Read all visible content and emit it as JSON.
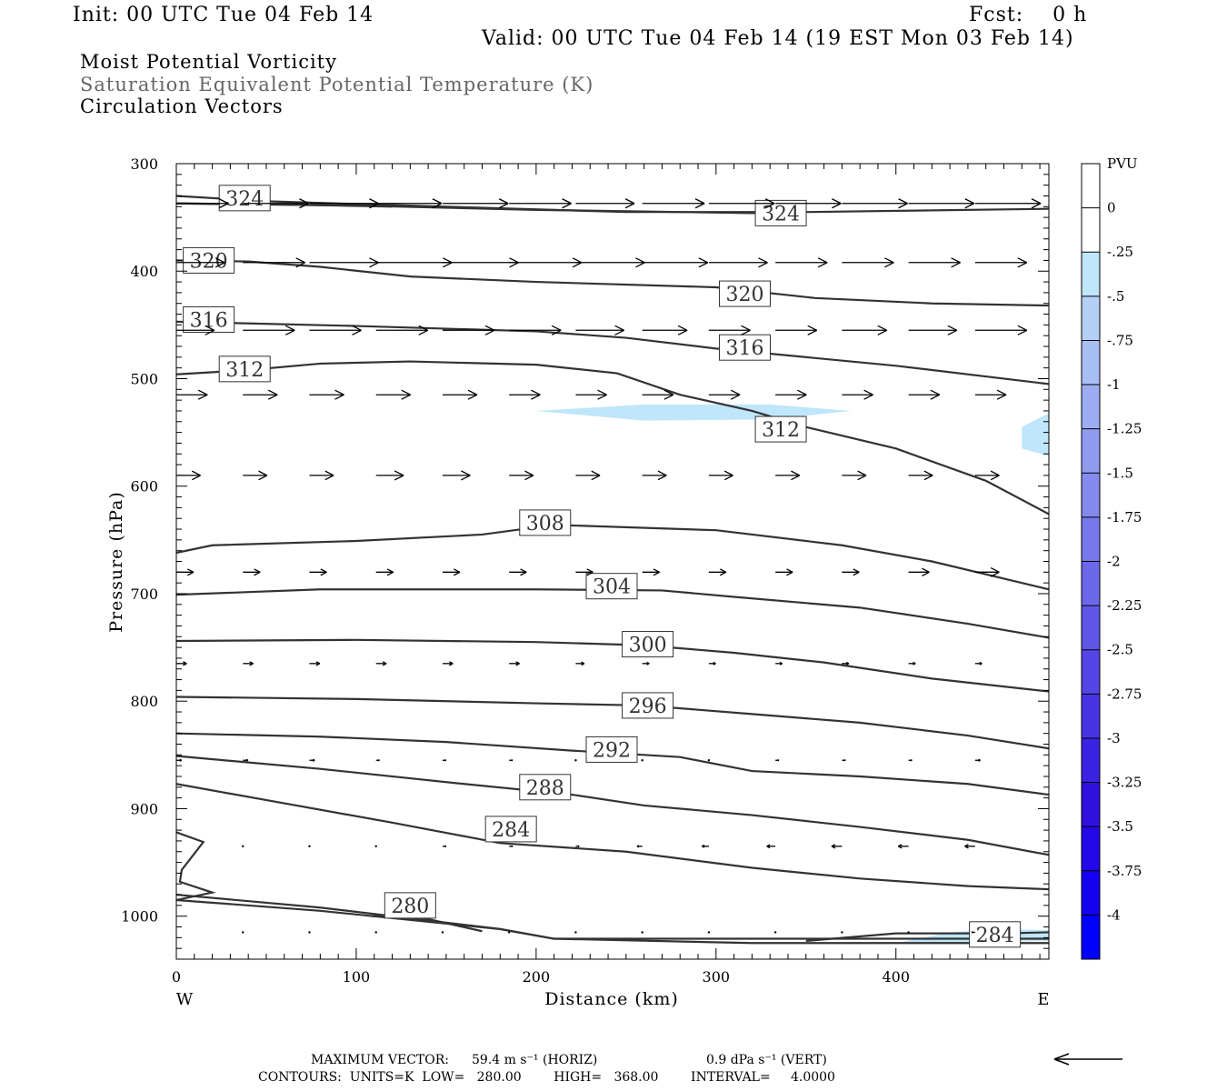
{
  "header": {
    "init": "Init: 00 UTC Tue 04 Feb 14",
    "fcst": "Fcst:    0 h",
    "valid": "Valid: 00 UTC Tue 04 Feb 14 (19 EST Mon 03 Feb 14)",
    "field1": "Moist Potential Vorticity",
    "field2": "Saturation Equivalent Potential Temperature (K)",
    "field3": "Circulation Vectors"
  },
  "footer": {
    "max_vector_label": "MAXIMUM VECTOR:",
    "max_vector_horiz": "59.4 m s⁻¹ (HORIZ)",
    "max_vector_vert": "0.9 dPa s⁻¹ (VERT)",
    "contours": "CONTOURS:  UNITS=K  LOW=   280.00        HIGH=   368.00        INTERVAL=     4.0000"
  },
  "colors": {
    "contour": "#333333",
    "pv_light": "#bfe6fa",
    "vector": "#000000"
  },
  "chart_data": {
    "type": "cross-section",
    "xlabel": "Distance (km)",
    "ylabel": "Pressure (hPa)",
    "xlim": [
      0,
      485
    ],
    "ylim": [
      1040,
      300
    ],
    "x_ticks": [
      0,
      100,
      200,
      300,
      400
    ],
    "y_ticks": [
      300,
      400,
      500,
      600,
      700,
      800,
      900,
      1000
    ],
    "x_end_labels": {
      "left": "W",
      "right": "E"
    },
    "colorbar": {
      "title": "PVU",
      "labels": [
        "0",
        "-.25",
        "-.5",
        "-.75",
        "-1",
        "-1.25",
        "-1.5",
        "-1.75",
        "-2",
        "-2.25",
        "-2.5",
        "-2.75",
        "-3",
        "-3.25",
        "-3.5",
        "-3.75",
        "-4"
      ],
      "colors": [
        "#ffffff",
        "#ffffff",
        "#bfe6fa",
        "#b4d0f6",
        "#a8bff4",
        "#9cadf2",
        "#909cf0",
        "#848aee",
        "#7879ec",
        "#6c68ea",
        "#6056e8",
        "#5445e6",
        "#4834e4",
        "#3c22e2",
        "#3011e0",
        "#2408e8",
        "#1400f0",
        "#0000ff"
      ]
    },
    "contours": [
      {
        "label": "324",
        "points": [
          [
            0,
            330
          ],
          [
            50,
            335
          ],
          [
            150,
            340
          ],
          [
            250,
            345
          ],
          [
            350,
            345
          ],
          [
            485,
            342
          ]
        ],
        "label_at": [
          38,
          332
        ]
      },
      {
        "label": "324",
        "points": [
          [
            0,
            337
          ],
          [
            100,
            339
          ],
          [
            200,
            343
          ],
          [
            320,
            346
          ]
        ],
        "label_at": null
      },
      {
        "label": "324",
        "points": [
          [
            0,
            337
          ],
          [
            60,
            338
          ],
          [
            120,
            340
          ]
        ],
        "label_at": null
      },
      {
        "label": "324",
        "points": [
          [
            320,
            346
          ],
          [
            330,
            346
          ]
        ],
        "label_at": [
          336,
          346
        ]
      },
      {
        "label": "320",
        "points": [
          [
            0,
            390
          ],
          [
            40,
            391
          ],
          [
            80,
            396
          ],
          [
            130,
            405
          ],
          [
            200,
            410
          ],
          [
            300,
            415
          ],
          [
            355,
            425
          ],
          [
            420,
            430
          ],
          [
            485,
            432
          ]
        ],
        "label_at": [
          18,
          390
        ]
      },
      {
        "label": "320",
        "points": [],
        "label_at": [
          316,
          421
        ]
      },
      {
        "label": "316",
        "points": [
          [
            0,
            447
          ],
          [
            100,
            451
          ],
          [
            200,
            456
          ],
          [
            250,
            462
          ],
          [
            300,
            472
          ],
          [
            400,
            488
          ],
          [
            485,
            505
          ]
        ],
        "label_at": [
          18,
          445
        ]
      },
      {
        "label": "316",
        "points": [],
        "label_at": [
          316,
          471
        ]
      },
      {
        "label": "312",
        "points": [
          [
            0,
            496
          ],
          [
            40,
            492
          ],
          [
            80,
            486
          ],
          [
            130,
            484
          ],
          [
            200,
            487
          ],
          [
            245,
            495
          ],
          [
            280,
            515
          ],
          [
            320,
            530
          ],
          [
            350,
            545
          ],
          [
            400,
            565
          ],
          [
            450,
            595
          ],
          [
            485,
            626
          ]
        ],
        "label_at": [
          38,
          491
        ]
      },
      {
        "label": "312",
        "points": [],
        "label_at": [
          336,
          547
        ]
      },
      {
        "label": "308",
        "points": [
          [
            0,
            662
          ],
          [
            20,
            655
          ],
          [
            100,
            651
          ],
          [
            170,
            645
          ],
          [
            210,
            636
          ],
          [
            300,
            641
          ],
          [
            370,
            655
          ],
          [
            420,
            670
          ],
          [
            485,
            696
          ]
        ],
        "label_at": [
          205,
          634
        ]
      },
      {
        "label": "304",
        "points": [
          [
            0,
            701
          ],
          [
            80,
            696
          ],
          [
            200,
            696
          ],
          [
            270,
            697
          ],
          [
            310,
            703
          ],
          [
            380,
            713
          ],
          [
            440,
            728
          ],
          [
            485,
            741
          ]
        ],
        "label_at": [
          242,
          693
        ]
      },
      {
        "label": "300",
        "points": [
          [
            0,
            744
          ],
          [
            100,
            743
          ],
          [
            200,
            745
          ],
          [
            260,
            748
          ],
          [
            310,
            755
          ],
          [
            360,
            764
          ],
          [
            420,
            779
          ],
          [
            485,
            791
          ]
        ],
        "label_at": [
          262,
          747
        ]
      },
      {
        "label": "296",
        "points": [
          [
            0,
            796
          ],
          [
            100,
            798
          ],
          [
            200,
            802
          ],
          [
            260,
            804
          ],
          [
            320,
            812
          ],
          [
            380,
            820
          ],
          [
            440,
            832
          ],
          [
            485,
            844
          ]
        ],
        "label_at": [
          262,
          804
        ]
      },
      {
        "label": "292",
        "points": [
          [
            0,
            830
          ],
          [
            80,
            833
          ],
          [
            150,
            838
          ],
          [
            220,
            846
          ],
          [
            280,
            852
          ],
          [
            320,
            865
          ],
          [
            380,
            870
          ],
          [
            440,
            877
          ],
          [
            485,
            887
          ]
        ],
        "label_at": [
          242,
          845
        ]
      },
      {
        "label": "288",
        "points": [
          [
            0,
            851
          ],
          [
            80,
            863
          ],
          [
            160,
            877
          ],
          [
            220,
            887
          ],
          [
            260,
            897
          ],
          [
            320,
            906
          ],
          [
            380,
            917
          ],
          [
            440,
            929
          ],
          [
            485,
            943
          ]
        ],
        "label_at": [
          205,
          880
        ]
      },
      {
        "label": "284",
        "points": [
          [
            0,
            877
          ],
          [
            60,
            895
          ],
          [
            120,
            913
          ],
          [
            180,
            932
          ],
          [
            250,
            940
          ],
          [
            320,
            955
          ],
          [
            380,
            965
          ],
          [
            440,
            972
          ],
          [
            485,
            975
          ]
        ],
        "label_at": [
          186,
          919
        ]
      },
      {
        "label": "284",
        "points": [
          [
            350,
            1023
          ],
          [
            400,
            1016
          ],
          [
            430,
            1016
          ],
          [
            460,
            1016
          ],
          [
            485,
            1015
          ]
        ],
        "label_at": [
          455,
          1017
        ]
      },
      {
        "label": "280",
        "points": [
          [
            108,
            1000
          ],
          [
            130,
            999
          ],
          [
            170,
            1014
          ]
        ],
        "label_at": [
          130,
          990
        ]
      },
      {
        "label": "",
        "points": [
          [
            0,
            922
          ],
          [
            15,
            931
          ],
          [
            3,
            957
          ],
          [
            2,
            968
          ],
          [
            20,
            978
          ],
          [
            0,
            985
          ]
        ],
        "label_at": null
      },
      {
        "label": "",
        "points": [
          [
            0,
            980
          ],
          [
            80,
            992
          ],
          [
            180,
            1012
          ],
          [
            210,
            1021
          ],
          [
            320,
            1025
          ],
          [
            350,
            1025
          ],
          [
            485,
            1025
          ]
        ],
        "label_at": null
      },
      {
        "label": "",
        "points": [
          [
            0,
            985
          ],
          [
            80,
            995
          ],
          [
            180,
            1012
          ],
          [
            210,
            1021
          ],
          [
            485,
            1021
          ]
        ],
        "label_at": null
      }
    ],
    "pv_shading": [
      {
        "level": "-0.25",
        "points": [
          [
            200,
            530
          ],
          [
            260,
            524
          ],
          [
            330,
            524
          ],
          [
            375,
            530
          ],
          [
            330,
            538
          ],
          [
            260,
            539
          ],
          [
            200,
            530
          ]
        ]
      },
      {
        "level": "-0.25",
        "points": [
          [
            470,
            545
          ],
          [
            485,
            532
          ],
          [
            485,
            572
          ],
          [
            470,
            565
          ]
        ]
      },
      {
        "level": "-0.25",
        "points": [
          [
            400,
            1025
          ],
          [
            430,
            1015
          ],
          [
            460,
            1012
          ],
          [
            485,
            1013
          ],
          [
            485,
            1023
          ]
        ]
      }
    ],
    "vector_rows": [
      {
        "p": 337,
        "x": [
          0,
          37,
          74,
          111,
          148,
          185,
          222,
          259,
          296,
          333,
          370,
          407,
          444
        ],
        "u": [
          30,
          38,
          40,
          38,
          38,
          36,
          34,
          36,
          38,
          38,
          38,
          38,
          38
        ],
        "w": [
          0,
          0,
          0,
          0,
          0,
          0,
          0,
          0,
          0,
          0,
          0,
          0,
          0
        ]
      },
      {
        "p": 392,
        "x": [
          0,
          37,
          74,
          111,
          148,
          185,
          222,
          259,
          296,
          333,
          370,
          407,
          444
        ],
        "u": [
          28,
          36,
          40,
          44,
          44,
          42,
          40,
          38,
          34,
          30,
          30,
          30,
          30
        ],
        "w": [
          0,
          0,
          0,
          0,
          0,
          0,
          0,
          0,
          0,
          0,
          0,
          0,
          0
        ]
      },
      {
        "p": 455,
        "x": [
          0,
          37,
          74,
          111,
          148,
          185,
          222,
          259,
          296,
          333,
          370,
          407,
          444
        ],
        "u": [
          22,
          30,
          30,
          30,
          30,
          30,
          28,
          26,
          24,
          24,
          26,
          28,
          30
        ],
        "w": [
          0,
          0,
          0,
          0,
          0,
          0,
          0,
          0,
          0,
          0,
          0,
          0,
          0
        ]
      },
      {
        "p": 515,
        "x": [
          0,
          37,
          74,
          111,
          148,
          185,
          222,
          259,
          296,
          333,
          370,
          407,
          444
        ],
        "u": [
          18,
          20,
          20,
          20,
          20,
          18,
          18,
          18,
          18,
          18,
          18,
          18,
          18
        ],
        "w": [
          0,
          0,
          0,
          0,
          0,
          0,
          0,
          0,
          0,
          0,
          0,
          0,
          0
        ]
      },
      {
        "p": 590,
        "x": [
          0,
          37,
          74,
          111,
          148,
          185,
          222,
          259,
          296,
          333,
          370,
          407,
          444
        ],
        "u": [
          14,
          14,
          14,
          16,
          16,
          14,
          14,
          14,
          14,
          14,
          14,
          14,
          14
        ],
        "w": [
          0,
          0,
          0,
          0,
          0,
          0,
          0,
          0,
          0,
          0,
          0,
          0,
          0
        ]
      },
      {
        "p": 680,
        "x": [
          0,
          37,
          74,
          111,
          148,
          185,
          222,
          259,
          296,
          333,
          370,
          407,
          444
        ],
        "u": [
          10,
          10,
          10,
          10,
          10,
          10,
          10,
          10,
          10,
          10,
          10,
          12,
          14
        ],
        "w": [
          0,
          0,
          0,
          0,
          0,
          0,
          0,
          0,
          0,
          0,
          0,
          0,
          0
        ]
      },
      {
        "p": 765,
        "x": [
          0,
          37,
          74,
          111,
          148,
          185,
          222,
          259,
          296,
          333,
          370,
          407,
          444
        ],
        "u": [
          6,
          6,
          6,
          6,
          6,
          6,
          5,
          4,
          4,
          4,
          4,
          4,
          4
        ],
        "w": [
          0,
          0,
          0,
          0,
          0,
          0,
          0,
          0,
          0,
          0,
          0,
          0,
          0
        ]
      },
      {
        "p": 855,
        "x": [
          0,
          37,
          74,
          111,
          148,
          185,
          222,
          259,
          296,
          333,
          370,
          407,
          444
        ],
        "u": [
          3,
          3,
          3,
          2,
          2,
          2,
          1,
          1,
          1,
          2,
          2,
          2,
          3
        ],
        "w": [
          0,
          0,
          0,
          0,
          0,
          0,
          0,
          0,
          0,
          0,
          0,
          0,
          0
        ]
      },
      {
        "p": 935,
        "x": [
          37,
          74,
          111,
          148,
          185,
          222,
          259,
          296,
          333,
          370,
          407,
          444
        ],
        "u": [
          1,
          1,
          1,
          2,
          2,
          2,
          -3,
          -4,
          -5,
          -6,
          -6,
          -6
        ],
        "w": [
          0,
          0,
          0,
          0,
          0,
          0,
          0,
          0,
          0,
          0,
          0,
          0
        ]
      },
      {
        "p": 1015,
        "x": [
          37,
          74,
          111,
          148,
          185,
          222,
          259,
          296,
          333,
          370,
          407,
          444
        ],
        "u": [
          0,
          0,
          0,
          0,
          0,
          0,
          0,
          0,
          0,
          0,
          0,
          -2
        ],
        "w": [
          0,
          0,
          0,
          0,
          0,
          0,
          0,
          0,
          0,
          0,
          0,
          0
        ]
      }
    ]
  }
}
